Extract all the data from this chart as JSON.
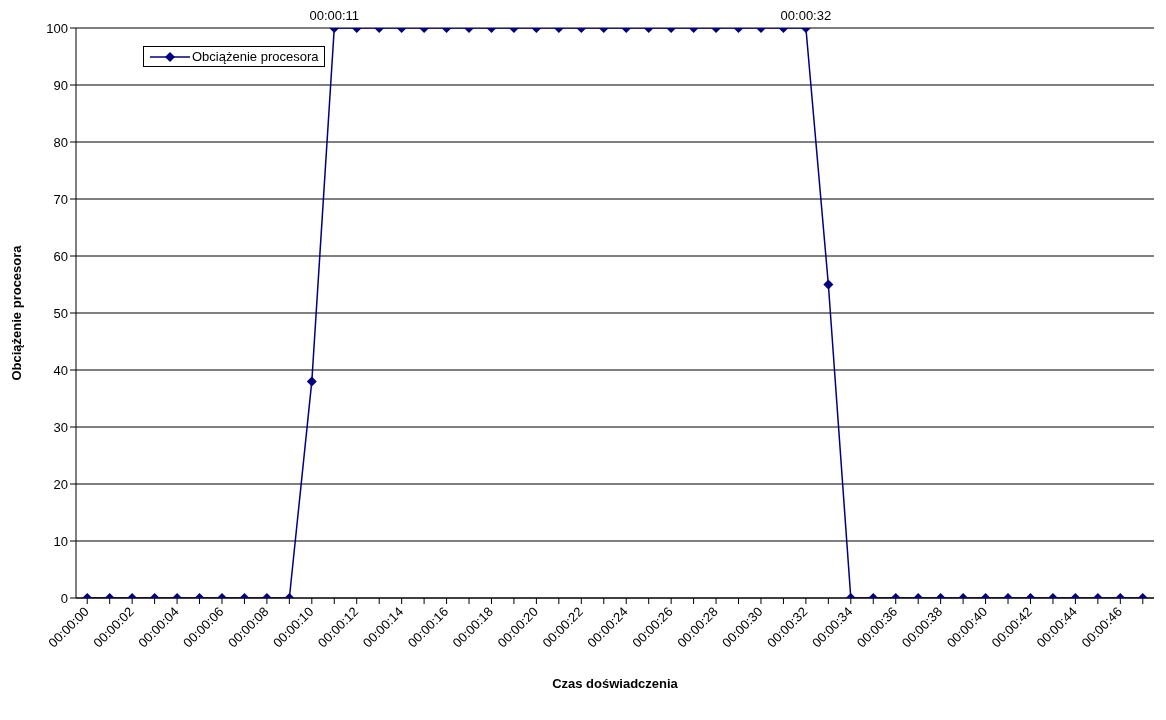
{
  "chart_data": {
    "type": "line",
    "xlabel": "Czas doświadczenia",
    "ylabel": "Obciążenie procesora",
    "x": [
      0,
      1,
      2,
      3,
      4,
      5,
      6,
      7,
      8,
      9,
      10,
      11,
      12,
      13,
      14,
      15,
      16,
      17,
      18,
      19,
      20,
      21,
      22,
      23,
      24,
      25,
      26,
      27,
      28,
      29,
      30,
      31,
      32,
      33,
      34,
      35,
      36,
      37,
      38,
      39,
      40,
      41,
      42,
      43,
      44,
      45,
      46,
      47
    ],
    "series": [
      {
        "name": "Obciążenie procesora",
        "color": "#000080",
        "values": [
          0,
          0,
          0,
          0,
          0,
          0,
          0,
          0,
          0,
          0,
          38,
          100,
          100,
          100,
          100,
          100,
          100,
          100,
          100,
          100,
          100,
          100,
          100,
          100,
          100,
          100,
          100,
          100,
          100,
          100,
          100,
          100,
          100,
          55,
          0,
          0,
          0,
          0,
          0,
          0,
          0,
          0,
          0,
          0,
          0,
          0,
          0,
          0
        ]
      }
    ],
    "xlim": [
      -0.5,
      47.5
    ],
    "xticks": [
      {
        "value": 0,
        "label": "00:00:00"
      },
      {
        "value": 1,
        "label": null
      },
      {
        "value": 2,
        "label": "00:00:02"
      },
      {
        "value": 3,
        "label": null
      },
      {
        "value": 4,
        "label": "00:00:04"
      },
      {
        "value": 5,
        "label": null
      },
      {
        "value": 6,
        "label": "00:00:06"
      },
      {
        "value": 7,
        "label": null
      },
      {
        "value": 8,
        "label": "00:00:08"
      },
      {
        "value": 9,
        "label": null
      },
      {
        "value": 10,
        "label": "00:00:10"
      },
      {
        "value": 11,
        "label": null
      },
      {
        "value": 12,
        "label": "00:00:12"
      },
      {
        "value": 13,
        "label": null
      },
      {
        "value": 14,
        "label": "00:00:14"
      },
      {
        "value": 15,
        "label": null
      },
      {
        "value": 16,
        "label": "00:00:16"
      },
      {
        "value": 17,
        "label": null
      },
      {
        "value": 18,
        "label": "00:00:18"
      },
      {
        "value": 19,
        "label": null
      },
      {
        "value": 20,
        "label": "00:00:20"
      },
      {
        "value": 21,
        "label": null
      },
      {
        "value": 22,
        "label": "00:00:22"
      },
      {
        "value": 23,
        "label": null
      },
      {
        "value": 24,
        "label": "00:00:24"
      },
      {
        "value": 25,
        "label": null
      },
      {
        "value": 26,
        "label": "00:00:26"
      },
      {
        "value": 27,
        "label": null
      },
      {
        "value": 28,
        "label": "00:00:28"
      },
      {
        "value": 29,
        "label": null
      },
      {
        "value": 30,
        "label": "00:00:30"
      },
      {
        "value": 31,
        "label": null
      },
      {
        "value": 32,
        "label": "00:00:32"
      },
      {
        "value": 33,
        "label": null
      },
      {
        "value": 34,
        "label": "00:00:34"
      },
      {
        "value": 35,
        "label": null
      },
      {
        "value": 36,
        "label": "00:00:36"
      },
      {
        "value": 37,
        "label": null
      },
      {
        "value": 38,
        "label": "00:00:38"
      },
      {
        "value": 39,
        "label": null
      },
      {
        "value": 40,
        "label": "00:00:40"
      },
      {
        "value": 41,
        "label": null
      },
      {
        "value": 42,
        "label": "00:00:42"
      },
      {
        "value": 43,
        "label": null
      },
      {
        "value": 44,
        "label": "00:00:44"
      },
      {
        "value": 45,
        "label": null
      },
      {
        "value": 46,
        "label": "00:00:46"
      },
      {
        "value": 47,
        "label": null
      }
    ],
    "annotations": [
      {
        "text": "00:00:11",
        "x": 11,
        "y": 100
      },
      {
        "text": "00:00:32",
        "x": 32,
        "y": 100
      }
    ],
    "ylim": [
      0,
      100
    ],
    "yticks": [
      0,
      10,
      20,
      30,
      40,
      50,
      60,
      70,
      80,
      90,
      100
    ],
    "grid": "y",
    "legend": "top left",
    "marker": "diamond",
    "line_style": "solid"
  }
}
